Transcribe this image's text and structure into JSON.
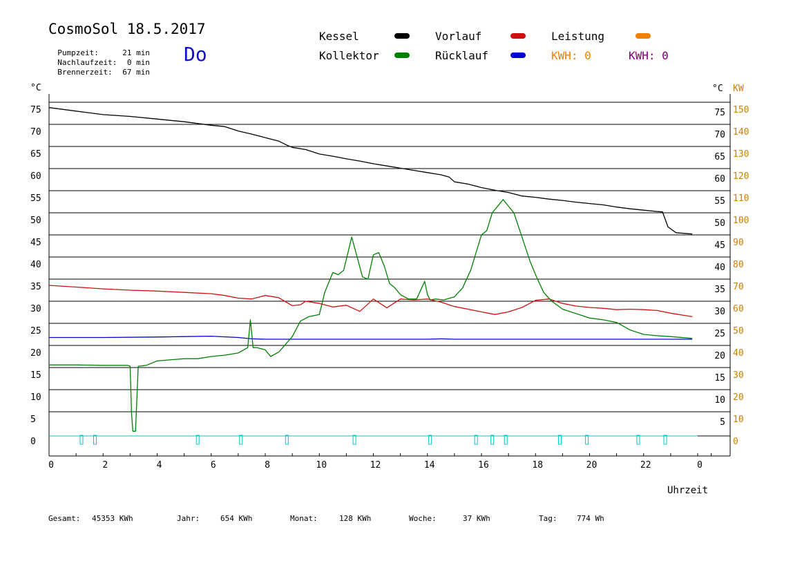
{
  "header": {
    "title": "CosmoSol 18.5.2017",
    "weekday": "Do",
    "info": [
      {
        "label": "Pumpzeit:",
        "value": "21 min"
      },
      {
        "label": "Nachlaufzeit:",
        "value": "0 min"
      },
      {
        "label": "Brennerzeit:",
        "value": "67 min"
      }
    ]
  },
  "legend": {
    "kessel": "Kessel",
    "kollektor": "Kollektor",
    "vorlauf": "Vorlauf",
    "ruecklauf": "Rücklauf",
    "leistung": "Leistung",
    "kwh1": "KWH: 0",
    "kwh2": "KWH: 0"
  },
  "footer": {
    "gesamt_label": "Gesamt:",
    "gesamt_value": "45353 KWh",
    "jahr_label": "Jahr:",
    "jahr_value": "654 KWh",
    "monat_label": "Monat:",
    "monat_value": "128 KWh",
    "woche_label": "Woche:",
    "woche_value": "37 KWh",
    "tag_label": "Tag:",
    "tag_value": "774 Wh"
  },
  "colors": {
    "kessel": "#000000",
    "kollektor": "#008000",
    "vorlauf": "#d01010",
    "ruecklauf": "#0000d0",
    "leistung": "#f08000",
    "kwh2": "#800080",
    "pump": "#00c8c8",
    "axis_kw": "#d08000"
  },
  "chart_data": {
    "type": "line",
    "xlabel": "Uhrzeit",
    "ylabel_left": "°C",
    "ylabel_right_1": "°C",
    "ylabel_right_2": "KW",
    "xlim": [
      0,
      24
    ],
    "ylim": [
      0,
      75
    ],
    "x_tick_labels": [
      "0",
      "2",
      "4",
      "6",
      "8",
      "10",
      "12",
      "14",
      "16",
      "18",
      "20",
      "22",
      "0"
    ],
    "y_tick_labels": [
      "0",
      "5",
      "10",
      "15",
      "20",
      "25",
      "30",
      "35",
      "40",
      "45",
      "50",
      "55",
      "60",
      "65",
      "70",
      "75"
    ],
    "y2_tick_labels": [
      "0",
      "10",
      "20",
      "30",
      "40",
      "50",
      "60",
      "70",
      "80",
      "90",
      "100",
      "110",
      "120",
      "130",
      "140",
      "150"
    ],
    "series": [
      {
        "name": "Kessel",
        "color": "#000000",
        "x": [
          0,
          1,
          2,
          3,
          4,
          5,
          6,
          6.5,
          7,
          7.5,
          8,
          8.5,
          8.8,
          9,
          9.5,
          10,
          10.5,
          11,
          11.5,
          12,
          12.5,
          13,
          13.5,
          14,
          14.5,
          14.8,
          15,
          15.5,
          16,
          16.5,
          17,
          17.5,
          18,
          18.5,
          19,
          19.5,
          20,
          20.5,
          21,
          21.5,
          22,
          22.5,
          22.7,
          22.9,
          23.2,
          23.8
        ],
        "y": [
          73.8,
          73,
          72.2,
          71.8,
          71.2,
          70.6,
          69.8,
          69.5,
          68.5,
          67.8,
          67,
          66.2,
          65.3,
          64.8,
          64.3,
          63.3,
          62.8,
          62.2,
          61.7,
          61.1,
          60.6,
          60.1,
          59.6,
          59.1,
          58.6,
          58.1,
          57,
          56.5,
          55.7,
          55.1,
          54.6,
          53.8,
          53.5,
          53.1,
          52.8,
          52.4,
          52.1,
          51.8,
          51.3,
          50.9,
          50.6,
          50.3,
          50.2,
          46.8,
          45.5,
          45.2
        ]
      },
      {
        "name": "Kollektor",
        "color": "#008000",
        "x": [
          0,
          1,
          2,
          2.9,
          3,
          3.05,
          3.1,
          3.2,
          3.3,
          3.6,
          4,
          5,
          5.5,
          6,
          6.5,
          7,
          7.2,
          7.35,
          7.45,
          7.55,
          7.7,
          8,
          8.2,
          8.5,
          9,
          9.3,
          9.6,
          10,
          10.2,
          10.5,
          10.7,
          10.9,
          11.2,
          11.4,
          11.6,
          11.8,
          12,
          12.2,
          12.4,
          12.6,
          12.8,
          13,
          13.3,
          13.6,
          13.9,
          14,
          14.1,
          14.3,
          14.6,
          15,
          15.3,
          15.6,
          15.8,
          16,
          16.2,
          16.4,
          16.6,
          16.8,
          17,
          17.2,
          17.5,
          17.8,
          18,
          18.3,
          18.6,
          19,
          19.5,
          20,
          20.5,
          21,
          21.5,
          22,
          22.5,
          23,
          23.8
        ],
        "y": [
          15.6,
          15.6,
          15.5,
          15.5,
          15.3,
          5,
          0.6,
          0.6,
          15.3,
          15.5,
          16.5,
          17,
          17,
          17.5,
          17.8,
          18.3,
          19,
          19.5,
          25.8,
          19.5,
          19.5,
          19,
          17.5,
          18.5,
          22,
          25.5,
          26.5,
          27,
          32,
          36.5,
          36,
          37,
          44.5,
          40,
          35.5,
          35,
          40.5,
          41,
          38,
          34,
          33,
          31.5,
          30.5,
          30.5,
          34.5,
          31.5,
          30.3,
          30.5,
          30.3,
          31,
          33,
          37,
          41,
          45,
          46,
          50,
          51.5,
          53,
          51.5,
          50,
          44.5,
          39,
          36,
          32,
          30,
          28.2,
          27.2,
          26.2,
          25.8,
          25.2,
          23.5,
          22.5,
          22.2,
          22,
          21.6
        ]
      },
      {
        "name": "Vorlauf",
        "color": "#d01010",
        "x": [
          0,
          1,
          2,
          3,
          4,
          5,
          6,
          6.5,
          7,
          7.5,
          8,
          8.5,
          9,
          9.3,
          9.5,
          10,
          10.5,
          11,
          11.5,
          12,
          12.5,
          13,
          13.5,
          14,
          14.5,
          15,
          15.5,
          16,
          16.5,
          17,
          17.5,
          18,
          18.5,
          19,
          19.5,
          20,
          20.5,
          21,
          21.5,
          22,
          22.5,
          23,
          23.8
        ],
        "y": [
          33.6,
          33.2,
          32.8,
          32.5,
          32.3,
          32,
          31.7,
          31.3,
          30.7,
          30.5,
          31.3,
          30.8,
          29,
          29.2,
          30,
          29.5,
          28.7,
          29.1,
          27.7,
          30.5,
          28.5,
          30.5,
          30.3,
          30.5,
          29.8,
          28.8,
          28.2,
          27.6,
          27,
          27.6,
          28.6,
          30.2,
          30.5,
          29.5,
          28.9,
          28.6,
          28.4,
          28.1,
          28.2,
          28.1,
          27.9,
          27.3,
          26.5
        ]
      },
      {
        "name": "Rücklauf",
        "color": "#0000d0",
        "x": [
          0,
          2,
          4,
          5,
          6,
          7,
          7.5,
          8,
          9,
          10,
          12,
          14,
          14.5,
          15,
          16,
          18,
          20,
          22,
          23.8
        ],
        "y": [
          21.8,
          21.8,
          21.9,
          22,
          22.1,
          21.8,
          21.5,
          21.4,
          21.4,
          21.4,
          21.4,
          21.4,
          21.5,
          21.4,
          21.4,
          21.4,
          21.4,
          21.4,
          21.4
        ]
      },
      {
        "name": "Leistung",
        "color": "#f08000",
        "x": [],
        "y": []
      }
    ],
    "pump_baseline": 0,
    "pump_pulses": [
      1.2,
      1.7,
      5.5,
      7.1,
      8.8,
      11.3,
      14.1,
      15.8,
      16.4,
      16.9,
      18.9,
      19.9,
      21.8,
      22.8
    ]
  }
}
